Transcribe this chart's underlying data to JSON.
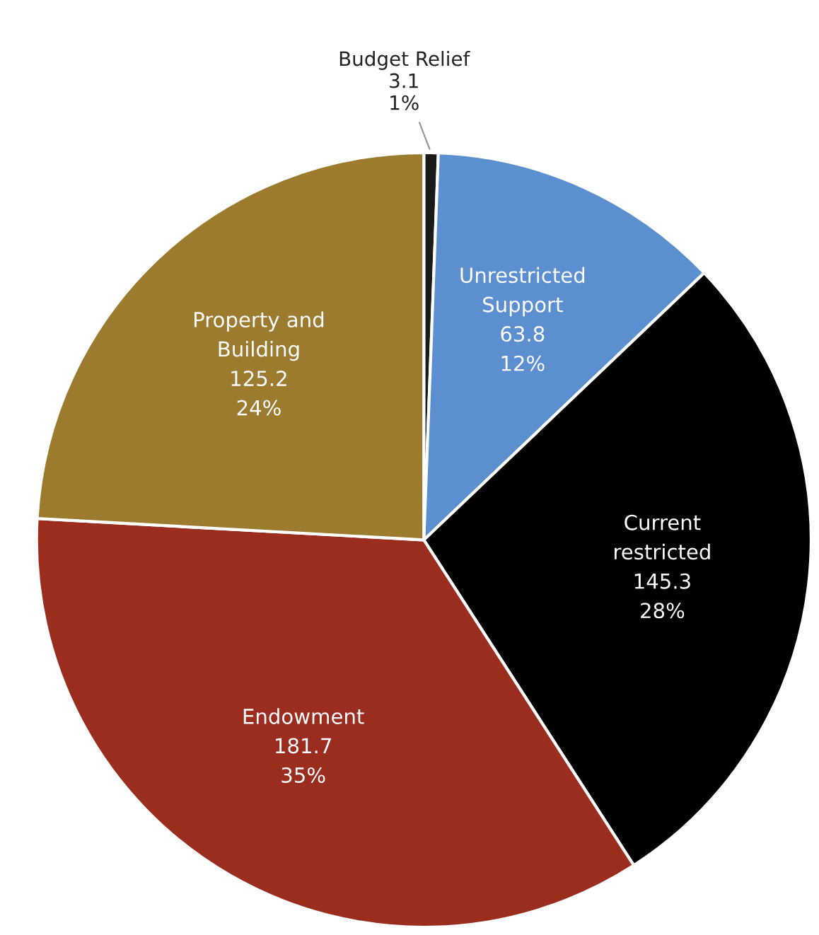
{
  "chart_data": {
    "type": "pie",
    "categories": [
      "Budget Relief",
      "Unrestricted\nSupport",
      "Current\nrestricted",
      "Endowment",
      "Property and\nBuilding"
    ],
    "values": [
      3.1,
      63.8,
      145.3,
      181.7,
      125.2
    ],
    "value_labels": [
      "3.1\n1%",
      "63.8\n12%",
      "145.3\n28%",
      "181.7\n35%",
      "125.2\n24%"
    ],
    "colors": [
      "#1a1a1a",
      "#5b8fd0",
      "#000000",
      "#9b2d1f",
      "#9c7a2e"
    ]
  }
}
